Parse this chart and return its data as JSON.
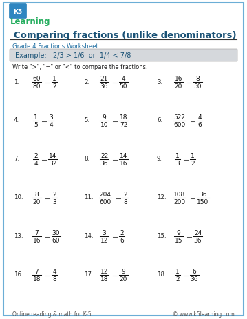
{
  "title": "Comparing fractions (unlike denominators)",
  "subtitle": "Grade 4 Fractions Worksheet",
  "example_text": "Example:   2/3 > 1/6  or  1/4 < 7/8",
  "instruction": "Write \">\", \"=\" or \"<\" to compare the fractions.",
  "problems": [
    {
      "num": "1",
      "n1": "60",
      "d1": "80",
      "n2": "1",
      "d2": "2"
    },
    {
      "num": "2",
      "n1": "21",
      "d1": "36",
      "n2": "4",
      "d2": "50"
    },
    {
      "num": "3",
      "n1": "16",
      "d1": "20",
      "n2": "8",
      "d2": "50"
    },
    {
      "num": "4",
      "n1": "1",
      "d1": "5",
      "n2": "3",
      "d2": "4"
    },
    {
      "num": "5",
      "n1": "9",
      "d1": "10",
      "n2": "18",
      "d2": "72"
    },
    {
      "num": "6",
      "n1": "522",
      "d1": "600",
      "n2": "4",
      "d2": "6"
    },
    {
      "num": "7",
      "n1": "2",
      "d1": "4",
      "n2": "14",
      "d2": "32"
    },
    {
      "num": "8",
      "n1": "22",
      "d1": "36",
      "n2": "14",
      "d2": "16"
    },
    {
      "num": "9",
      "n1": "1",
      "d1": "3",
      "n2": "1",
      "d2": "2"
    },
    {
      "num": "10",
      "n1": "8",
      "d1": "20",
      "n2": "2",
      "d2": "3"
    },
    {
      "num": "11",
      "n1": "204",
      "d1": "600",
      "n2": "2",
      "d2": "8"
    },
    {
      "num": "12",
      "n1": "108",
      "d1": "200",
      "n2": "36",
      "d2": "150"
    },
    {
      "num": "13",
      "n1": "7",
      "d1": "16",
      "n2": "30",
      "d2": "60"
    },
    {
      "num": "14",
      "n1": "3",
      "d1": "12",
      "n2": "2",
      "d2": "6"
    },
    {
      "num": "15",
      "n1": "9",
      "d1": "15",
      "n2": "24",
      "d2": "36"
    },
    {
      "num": "16",
      "n1": "7",
      "d1": "18",
      "n2": "4",
      "d2": "8"
    },
    {
      "num": "17",
      "n1": "12",
      "d1": "18",
      "n2": "9",
      "d2": "20"
    },
    {
      "num": "18",
      "n1": "1",
      "d1": "2",
      "n2": "6",
      "d2": "36"
    }
  ],
  "footer_left": "Online reading & math for K-5",
  "footer_right": "© www.k5learning.com",
  "border_color": "#6baed6",
  "title_color": "#1a5276",
  "subtitle_color": "#2471a3",
  "example_color": "#1a5276",
  "example_bg": "#d5d8dc",
  "bg_color": "#ffffff",
  "text_color": "#222222",
  "frac_color": "#111111",
  "blank_color": "#555555",
  "footer_color": "#555555",
  "diag_color": "#c8d6e5"
}
